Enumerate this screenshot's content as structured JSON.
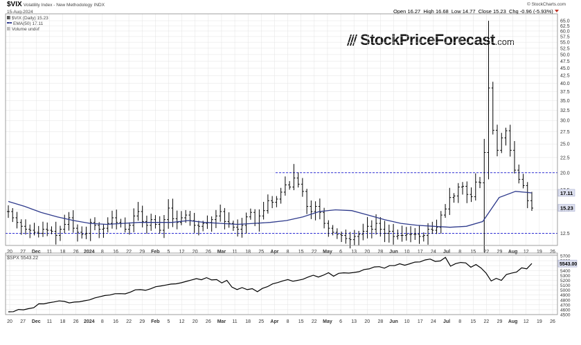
{
  "header": {
    "symbol": "$VIX",
    "name": "Volatility Index - New Methodology",
    "exchange": "INDX",
    "date": "15-Aug-2024",
    "open_label": "Open",
    "open": "16.27",
    "high_label": "High",
    "high": "16.68",
    "low_label": "Low",
    "low": "14.77",
    "close_label": "Close",
    "close": "15.23",
    "chg_label": "Chg",
    "chg": "-0.96 (-5.93%)",
    "copyright": "© StockCharts.com",
    "legend_vix": "$VIX (Daily) 15.23",
    "legend_ema": "EMA(50) 17.11",
    "legend_volume": "Volume undef",
    "legend_spx": "$SPX 5543.22"
  },
  "brand": {
    "name": "StockPriceForecast",
    "suffix": ".com"
  },
  "colors": {
    "price": "#000000",
    "ema": "#2e3a8c",
    "ref_lines": "#2b2bd6",
    "grid": "#e3e3e3",
    "label_bg": "#dde0ef",
    "down": "#c0392b"
  },
  "chart_data": [
    {
      "type": "ohlc",
      "title": "$VIX (Daily) 15.23",
      "ylim": [
        11.5,
        65
      ],
      "y_scale": "log",
      "y_ticks": [
        12.5,
        15.0,
        17.5,
        20.0,
        22.5,
        25.0,
        27.5,
        30.0,
        32.5,
        35.0,
        37.5,
        40.0,
        42.5,
        45.0,
        47.5,
        50.0,
        52.5,
        55.0,
        57.5,
        60.0,
        62.5,
        65.0
      ],
      "x_ticks": [
        "20",
        "27",
        "Dec",
        "11",
        "18",
        "26",
        "2024",
        "8",
        "16",
        "22",
        "29",
        "Feb",
        "5",
        "12",
        "20",
        "26",
        "Mar",
        "11",
        "18",
        "25",
        "Apr",
        "8",
        "15",
        "22",
        "May",
        "6",
        "13",
        "20",
        "28",
        "Jun",
        "10",
        "17",
        "24",
        "Jul",
        "8",
        "15",
        "22",
        "29",
        "Aug",
        "12",
        "19",
        "26"
      ],
      "last_labels": [
        "17.11",
        "15.23"
      ],
      "ref_lines": [
        20.0,
        12.5
      ],
      "series": [
        {
          "name": "$VIX",
          "close": [
            14.8,
            14.1,
            13.6,
            13.2,
            12.9,
            12.8,
            12.6,
            12.5,
            12.9,
            12.8,
            12.7,
            12.3,
            12.9,
            13.4,
            14.1,
            13.0,
            12.6,
            12.4,
            12.5,
            13.6,
            13.3,
            12.9,
            13.0,
            13.5,
            14.1,
            13.6,
            13.5,
            12.9,
            13.3,
            14.3,
            14.8,
            13.7,
            13.3,
            13.9,
            13.4,
            12.8,
            13.9,
            15.2,
            14.0,
            13.6,
            14.1,
            14.4,
            13.8,
            13.3,
            13.2,
            13.5,
            13.6,
            13.9,
            14.3,
            14.8,
            13.7,
            13.5,
            13.1,
            12.9,
            13.3,
            14.2,
            14.7,
            13.5,
            14.3,
            14.9,
            16.1,
            15.9,
            16.3,
            17.2,
            18.2,
            17.9,
            19.2,
            18.3,
            17.3,
            15.4,
            14.8,
            15.4,
            14.7,
            13.5,
            13.0,
            12.6,
            12.4,
            12.3,
            12.0,
            11.9,
            12.2,
            12.4,
            12.7,
            13.2,
            12.9,
            13.5,
            12.9,
            12.5,
            12.7,
            12.2,
            12.3,
            12.3,
            12.4,
            12.4,
            12.4,
            12.2,
            12.3,
            12.9,
            12.8,
            13.1,
            14.4,
            15.1,
            16.5,
            16.7,
            17.9,
            18.0,
            16.9,
            16.6,
            18.6,
            18.5,
            23.4,
            38.6,
            27.8,
            23.8,
            26.2,
            27.7,
            23.8,
            20.4,
            19.0,
            18.1,
            16.1,
            15.2
          ]
        },
        {
          "name": "EMA(50)",
          "values": [
            16.0,
            15.4,
            14.7,
            14.2,
            13.8,
            13.5,
            13.4,
            13.5,
            13.6,
            13.6,
            13.6,
            13.8,
            13.6,
            13.5,
            13.4,
            13.5,
            13.6,
            13.8,
            14.2,
            14.8,
            15.0,
            14.9,
            14.4,
            13.9,
            13.5,
            13.3,
            13.2,
            13.1,
            13.2,
            13.7,
            16.5,
            17.3,
            17.1
          ]
        },
        {
          "name": "$SPX",
          "ylim": [
            4500,
            5700
          ],
          "values": [
            4556,
            4559,
            4604,
            4598,
            4622,
            4640,
            4720,
            4719,
            4742,
            4759,
            4780,
            4770,
            4739,
            4756,
            4761,
            4783,
            4801,
            4840,
            4864,
            4890,
            4900,
            4927,
            4928,
            4924,
            4958,
            5005,
            5010,
            4996,
            5026,
            5069,
            5085,
            5103,
            5123,
            5128,
            5150,
            5178,
            5204,
            5234,
            5212,
            5254,
            5208,
            5215,
            5147,
            5199,
            5060,
            5011,
            5051,
            5010,
            5030,
            4967,
            5035,
            5071,
            5127,
            5153,
            5187,
            5214,
            5180,
            5200,
            5223,
            5267,
            5304,
            5266,
            5305,
            5354,
            5283,
            5343,
            5353,
            5347,
            5360,
            5375,
            5421,
            5433,
            5473,
            5478,
            5447,
            5500,
            5500,
            5537,
            5508,
            5537,
            5572,
            5576,
            5615,
            5633,
            5585,
            5595,
            5667,
            5488,
            5540,
            5564,
            5555,
            5467,
            5522,
            5451,
            5347,
            5186,
            5240,
            5199,
            5319,
            5345,
            5368,
            5455,
            5434,
            5543
          ]
        }
      ]
    }
  ]
}
